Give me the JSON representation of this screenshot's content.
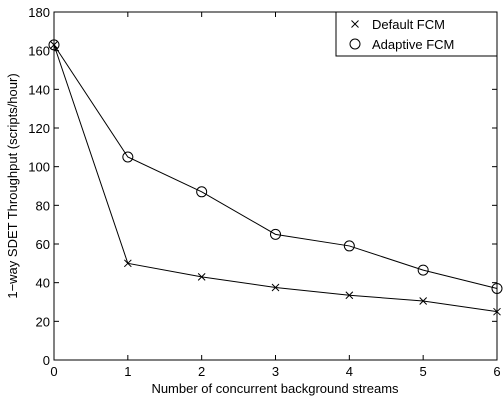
{
  "chart_data": {
    "type": "line",
    "xlabel": "Number of concurrent background streams",
    "ylabel": "1−way SDET Throughput (scripts/hour)",
    "xlim": [
      0,
      6
    ],
    "ylim": [
      0,
      180
    ],
    "xticks": [
      0,
      1,
      2,
      3,
      4,
      5,
      6
    ],
    "yticks": [
      0,
      20,
      40,
      60,
      80,
      100,
      120,
      140,
      160,
      180
    ],
    "grid": false,
    "legend_position": "top-right",
    "x": [
      0,
      1,
      2,
      3,
      4,
      5,
      6
    ],
    "series": [
      {
        "name": "Default FCM",
        "marker": "x",
        "values": [
          163,
          50,
          43,
          37.5,
          33.5,
          30.5,
          25
        ]
      },
      {
        "name": "Adaptive FCM",
        "marker": "circle",
        "values": [
          163,
          105,
          87,
          65,
          59,
          46.5,
          37
        ]
      }
    ]
  },
  "colors": {
    "line": "#000000",
    "background": "#ffffff"
  }
}
